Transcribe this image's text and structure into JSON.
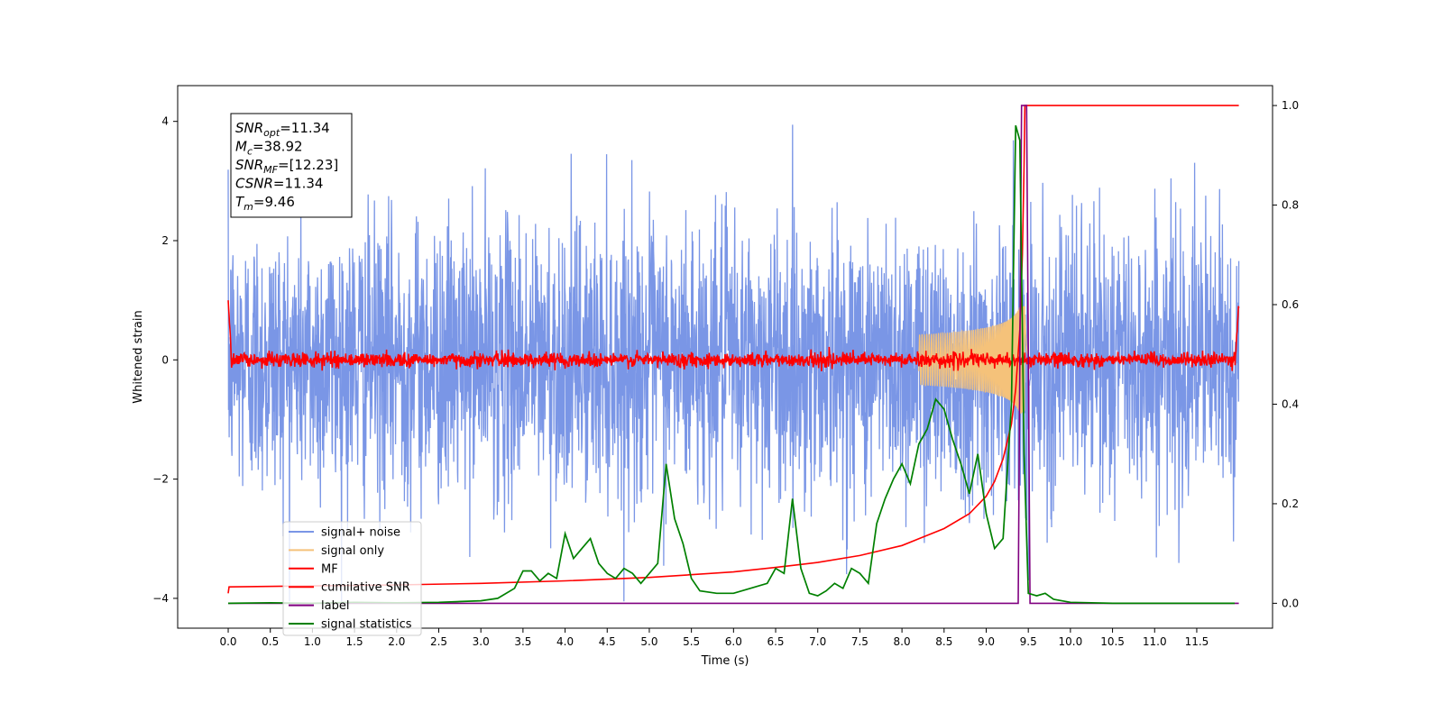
{
  "chart_data": {
    "type": "line",
    "xlabel": "Time (s)",
    "ylabel": "Whitened strain",
    "xlim": [
      -0.6,
      12.4
    ],
    "ylim_left": [
      -4.5,
      4.6
    ],
    "ylim_right": [
      -0.05,
      1.04
    ],
    "x_ticks": [
      0.0,
      0.5,
      1.0,
      1.5,
      2.0,
      2.5,
      3.0,
      3.5,
      4.0,
      4.5,
      5.0,
      5.5,
      6.0,
      6.5,
      7.0,
      7.5,
      8.0,
      8.5,
      9.0,
      9.5,
      10.0,
      10.5,
      11.0,
      11.5
    ],
    "x_tick_labels": [
      "0.0",
      "0.5",
      "1.0",
      "1.5",
      "2.0",
      "2.5",
      "3.0",
      "3.5",
      "4.0",
      "4.5",
      "5.0",
      "5.5",
      "6.0",
      "6.5",
      "7.0",
      "7.5",
      "8.0",
      "8.5",
      "9.0",
      "9.5",
      "10.0",
      "10.5",
      "11.0",
      "11.5"
    ],
    "y_left_ticks": [
      -4,
      -2,
      0,
      2,
      4
    ],
    "y_left_tick_labels": [
      "−4",
      "−2",
      "0",
      "2",
      "4"
    ],
    "y_right_ticks": [
      0.0,
      0.2,
      0.4,
      0.6,
      0.8,
      1.0
    ],
    "y_right_tick_labels": [
      "0.0",
      "0.2",
      "0.4",
      "0.6",
      "0.8",
      "1.0"
    ],
    "annotation_box": {
      "lines": [
        {
          "sym": "SNR",
          "sub": "opt",
          "val": "=11.34"
        },
        {
          "sym": "M",
          "sub": "c",
          "val": "=38.92"
        },
        {
          "sym": "SNR",
          "sub": "MF",
          "val": "=[12.23]"
        },
        {
          "sym": "CSNR",
          "sub": "",
          "val": "=11.34"
        },
        {
          "sym": "T",
          "sub": "m",
          "val": "=9.46"
        }
      ]
    },
    "legend_position": "lower-left",
    "series": [
      {
        "name": "signal+ noise",
        "color": "#7a96e6",
        "axis": "left",
        "description": "noisy whitened strain, approximately Gaussian noise with std about 1.2 over t=0 to 12.0 s",
        "x_range": [
          0.0,
          12.0
        ],
        "approx_min": -4.1,
        "approx_max": 4.2
      },
      {
        "name": "signal only",
        "color": "#f5c27a",
        "axis": "left",
        "description": "chirp signal growing in amplitude until merger near t=9.46 s",
        "x_range": [
          0.0,
          12.0
        ],
        "peak_time": 9.46,
        "peak_amplitude": 0.9
      },
      {
        "name": "MF",
        "color": "#ff0000",
        "axis": "left",
        "description": "matched-filter output, small fluctuations about 0 with edge spikes near 1.0",
        "x_range": [
          0.0,
          12.0
        ],
        "edge_value": 1.0
      },
      {
        "name": "cumilative SNR",
        "color": "#ff0000",
        "axis": "right",
        "x": [
          0.0,
          0.01,
          1.0,
          2.0,
          3.0,
          4.0,
          5.0,
          6.0,
          6.5,
          7.0,
          7.5,
          8.0,
          8.5,
          8.8,
          9.0,
          9.1,
          9.2,
          9.3,
          9.35,
          9.4,
          9.43,
          9.45,
          9.46,
          9.5,
          12.0
        ],
        "values": [
          0.02,
          0.033,
          0.035,
          0.037,
          0.04,
          0.045,
          0.052,
          0.063,
          0.072,
          0.082,
          0.096,
          0.116,
          0.15,
          0.18,
          0.215,
          0.245,
          0.29,
          0.36,
          0.43,
          0.55,
          0.7,
          0.88,
          1.0,
          1.0,
          1.0
        ]
      },
      {
        "name": "label",
        "color": "#800080",
        "axis": "right",
        "x": [
          0.0,
          9.38,
          9.42,
          9.48,
          9.52,
          12.0
        ],
        "values": [
          0.0,
          0.0,
          1.0,
          1.0,
          0.0,
          0.0
        ]
      },
      {
        "name": "signal statistics",
        "color": "#008000",
        "axis": "right",
        "x": [
          0.0,
          0.5,
          1.0,
          1.5,
          2.0,
          2.5,
          3.0,
          3.2,
          3.4,
          3.5,
          3.6,
          3.7,
          3.8,
          3.9,
          4.0,
          4.1,
          4.2,
          4.3,
          4.4,
          4.5,
          4.6,
          4.7,
          4.8,
          4.9,
          5.0,
          5.1,
          5.2,
          5.3,
          5.4,
          5.5,
          5.6,
          5.8,
          6.0,
          6.2,
          6.4,
          6.5,
          6.6,
          6.7,
          6.8,
          6.9,
          7.0,
          7.1,
          7.2,
          7.3,
          7.4,
          7.5,
          7.6,
          7.7,
          7.8,
          7.9,
          8.0,
          8.1,
          8.2,
          8.3,
          8.4,
          8.5,
          8.6,
          8.7,
          8.8,
          8.9,
          9.0,
          9.1,
          9.2,
          9.3,
          9.35,
          9.4,
          9.45,
          9.5,
          9.6,
          9.7,
          9.8,
          10.0,
          10.5,
          11.0,
          11.5,
          11.95
        ],
        "values": [
          0.0,
          0.001,
          0.0,
          0.002,
          0.001,
          0.002,
          0.005,
          0.01,
          0.03,
          0.065,
          0.065,
          0.045,
          0.06,
          0.05,
          0.14,
          0.09,
          0.11,
          0.13,
          0.08,
          0.06,
          0.05,
          0.07,
          0.06,
          0.04,
          0.06,
          0.08,
          0.28,
          0.17,
          0.12,
          0.05,
          0.025,
          0.02,
          0.02,
          0.03,
          0.04,
          0.07,
          0.06,
          0.21,
          0.07,
          0.02,
          0.015,
          0.025,
          0.04,
          0.03,
          0.07,
          0.06,
          0.04,
          0.16,
          0.21,
          0.25,
          0.28,
          0.24,
          0.32,
          0.35,
          0.41,
          0.39,
          0.33,
          0.28,
          0.22,
          0.3,
          0.18,
          0.11,
          0.13,
          0.4,
          0.96,
          0.93,
          0.3,
          0.02,
          0.015,
          0.02,
          0.008,
          0.002,
          0.0,
          0.0,
          0.0,
          0.0
        ]
      }
    ]
  }
}
